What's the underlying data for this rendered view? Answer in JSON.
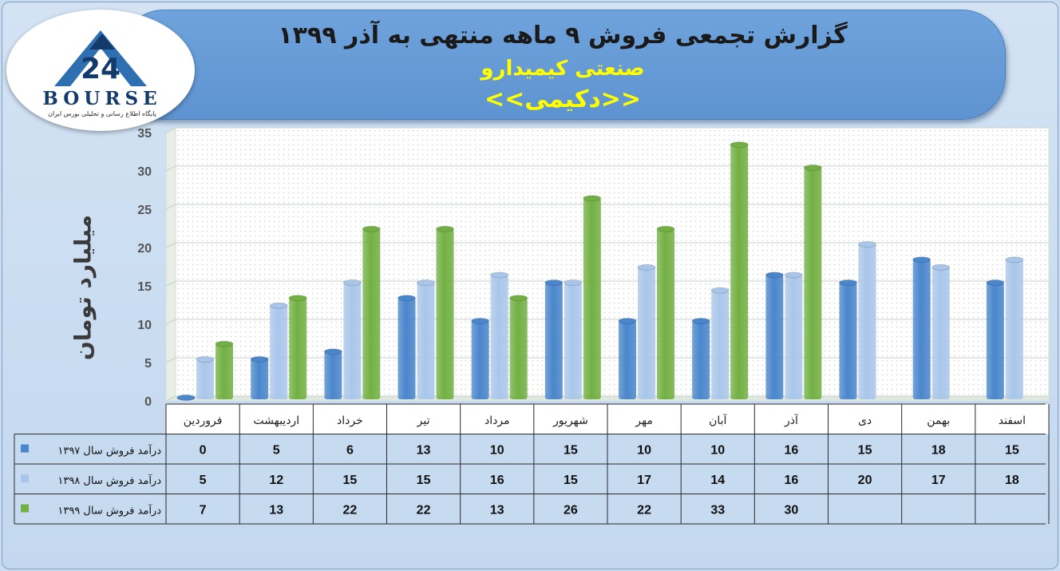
{
  "header": {
    "title_line1": "گزارش تجمعی فروش ۹ ماهه منتهی به آذر ۱۳۹۹",
    "title_line2": "صنعتی کیمیدارو",
    "title_line3": "<<دکیمی>>",
    "title_color": "#1a1a1a",
    "accent_color": "#ffff00"
  },
  "logo": {
    "word": "BOURSE",
    "number": "24",
    "subtitle": "پایگاه اطلاع رسانی و تحلیلی بورس ایران"
  },
  "chart_data": {
    "type": "bar",
    "ylabel": "میلیارد تومان",
    "ylim": [
      0,
      35
    ],
    "yticks": [
      0,
      5,
      10,
      15,
      20,
      25,
      30,
      35
    ],
    "grid": true,
    "legend": "data-table-left",
    "categories": [
      "فروردین",
      "اردیبهشت",
      "خرداد",
      "تیر",
      "مرداد",
      "شهریور",
      "مهر",
      "آبان",
      "آذر",
      "دی",
      "بهمن",
      "اسفند"
    ],
    "series": [
      {
        "name": "درآمد فروش سال ۱۳۹۷",
        "color": "#4a86cc",
        "values": [
          0,
          5,
          6,
          13,
          10,
          15,
          10,
          10,
          16,
          15,
          18,
          15
        ]
      },
      {
        "name": "درآمد فروش سال ۱۳۹۸",
        "color": "#a9c6ea",
        "values": [
          5,
          12,
          15,
          15,
          16,
          15,
          17,
          14,
          16,
          20,
          17,
          18
        ]
      },
      {
        "name": "درآمد فروش سال ۱۳۹۹",
        "color": "#72b043",
        "values": [
          7,
          13,
          22,
          22,
          13,
          26,
          22,
          33,
          30,
          null,
          null,
          null
        ]
      }
    ]
  }
}
